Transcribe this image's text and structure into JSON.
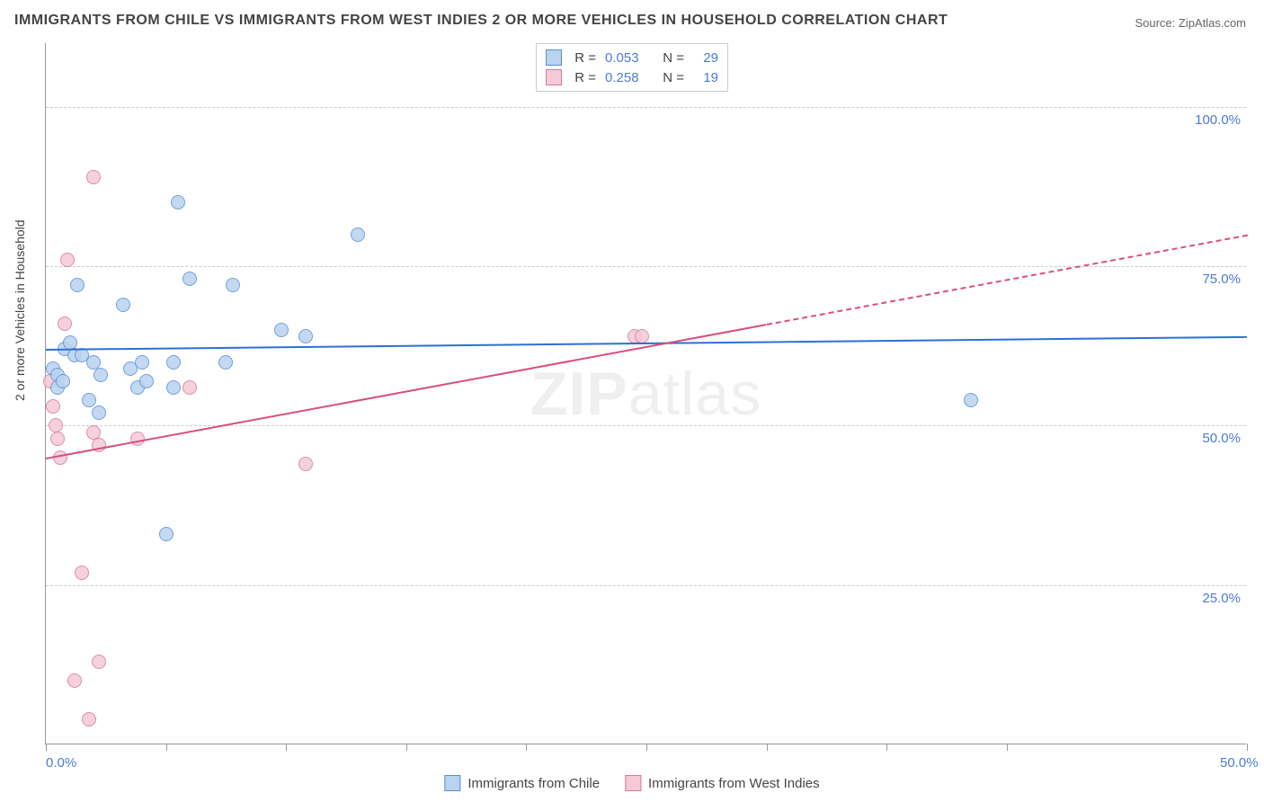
{
  "title": "IMMIGRANTS FROM CHILE VS IMMIGRANTS FROM WEST INDIES 2 OR MORE VEHICLES IN HOUSEHOLD CORRELATION CHART",
  "source": "Source: ZipAtlas.com",
  "watermark_bold": "ZIP",
  "watermark_light": "atlas",
  "y_axis_label": "2 or more Vehicles in Household",
  "chart": {
    "type": "scatter",
    "xlim": [
      0,
      50
    ],
    "ylim": [
      0,
      110
    ],
    "yticks": [
      25,
      50,
      75,
      100
    ],
    "ytick_labels": [
      "25.0%",
      "50.0%",
      "75.0%",
      "100.0%"
    ],
    "xticks": [
      0,
      5,
      10,
      15,
      20,
      25,
      30,
      35,
      40,
      50
    ],
    "xtick_labels": {
      "0": "0.0%",
      "50": "50.0%"
    },
    "background_color": "#ffffff",
    "grid_color": "#cccccc",
    "axis_color": "#999999",
    "ytick_label_color": "#4a7bd6",
    "xtick_label_color": "#4a7bd6",
    "marker_radius": 8
  },
  "series_a": {
    "name": "Immigrants from Chile",
    "fill": "#b9d3f0",
    "stroke": "#5a8fd6",
    "line_color": "#2e6fd6",
    "r": "0.053",
    "n": "29",
    "points": [
      [
        0.3,
        59
      ],
      [
        0.5,
        58
      ],
      [
        0.5,
        56
      ],
      [
        0.7,
        57
      ],
      [
        0.8,
        62
      ],
      [
        1.0,
        63
      ],
      [
        1.2,
        61
      ],
      [
        1.3,
        72
      ],
      [
        1.5,
        61
      ],
      [
        1.8,
        54
      ],
      [
        2.0,
        60
      ],
      [
        2.2,
        52
      ],
      [
        2.3,
        58
      ],
      [
        3.2,
        69
      ],
      [
        3.5,
        59
      ],
      [
        3.8,
        56
      ],
      [
        4.0,
        60
      ],
      [
        4.2,
        57
      ],
      [
        5.0,
        33
      ],
      [
        5.3,
        60
      ],
      [
        5.3,
        56
      ],
      [
        5.5,
        85
      ],
      [
        6.0,
        73
      ],
      [
        7.5,
        60
      ],
      [
        7.8,
        72
      ],
      [
        9.8,
        65
      ],
      [
        10.8,
        64
      ],
      [
        13.0,
        80
      ],
      [
        38.5,
        54
      ]
    ],
    "trend": {
      "x0": 0,
      "y0": 62,
      "x1": 50,
      "y1": 64
    }
  },
  "series_b": {
    "name": "Immigrants from West Indies",
    "fill": "#f5c9d6",
    "stroke": "#d67a9a",
    "line_color": "#d94f7a",
    "r": "0.258",
    "n": "19",
    "points": [
      [
        0.2,
        57
      ],
      [
        0.3,
        53
      ],
      [
        0.4,
        50
      ],
      [
        0.5,
        48
      ],
      [
        0.6,
        45
      ],
      [
        0.8,
        66
      ],
      [
        0.9,
        76
      ],
      [
        1.2,
        10
      ],
      [
        1.5,
        27
      ],
      [
        1.8,
        4
      ],
      [
        2.0,
        89
      ],
      [
        2.2,
        13
      ],
      [
        2.0,
        49
      ],
      [
        2.2,
        47
      ],
      [
        3.8,
        48
      ],
      [
        6.0,
        56
      ],
      [
        10.8,
        44
      ],
      [
        24.5,
        64
      ],
      [
        24.8,
        64
      ]
    ],
    "trend_solid": {
      "x0": 0,
      "y0": 45,
      "x1": 30,
      "y1": 66
    },
    "trend_dash": {
      "x0": 30,
      "y0": 66,
      "x1": 50,
      "y1": 80
    }
  },
  "legend_top": {
    "r_label": "R =",
    "n_label": "N ="
  }
}
